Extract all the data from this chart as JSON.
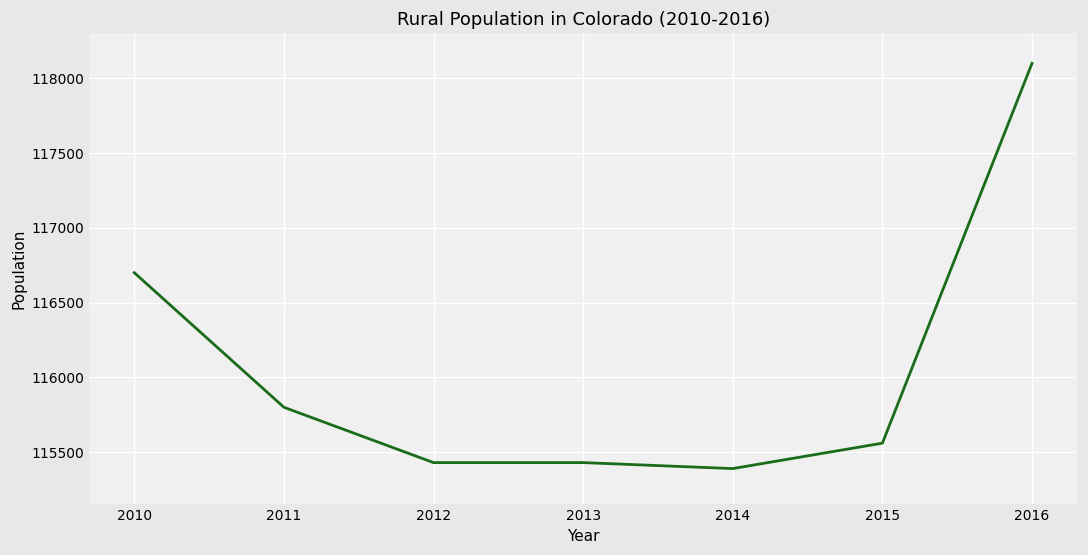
{
  "years": [
    2010,
    2011,
    2012,
    2013,
    2014,
    2015,
    2016
  ],
  "population": [
    116700,
    115800,
    115430,
    115430,
    115390,
    115560,
    118100
  ],
  "line_color": "#1a6b1a",
  "line_width": 2.0,
  "title": "Rural Population in Colorado (2010-2016)",
  "xlabel": "Year",
  "ylabel": "Population",
  "background_color": "#e8e8e8",
  "plot_background_color": "#f0f0f0",
  "grid_color": "#ffffff",
  "ylim": [
    115150,
    118300
  ],
  "yticks": [
    115500,
    116000,
    116500,
    117000,
    117500,
    118000
  ],
  "xticks": [
    2010,
    2011,
    2012,
    2013,
    2014,
    2015,
    2016
  ],
  "title_fontsize": 13,
  "label_fontsize": 11,
  "tick_fontsize": 10
}
